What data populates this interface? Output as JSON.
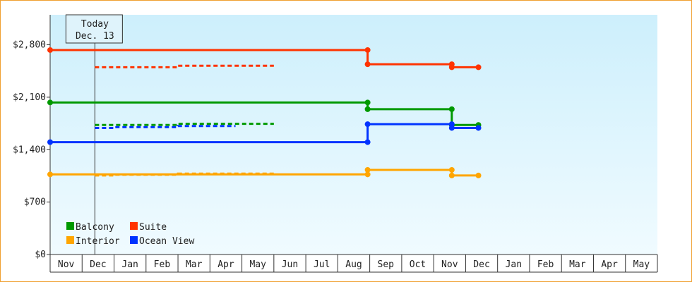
{
  "chart_data": {
    "type": "line",
    "title": "",
    "xlabel": "",
    "ylabel": "",
    "ylim": [
      0,
      3200
    ],
    "yticks": [
      0,
      700,
      1400,
      2100,
      2800
    ],
    "ytick_labels": [
      "$0",
      "$700",
      "$1,400",
      "$2,100",
      "$2,800"
    ],
    "xtick_labels": [
      "Nov",
      "Dec",
      "Jan",
      "Feb",
      "Mar",
      "Apr",
      "May",
      "Jun",
      "Jul",
      "Aug",
      "Sep",
      "Oct",
      "Nov",
      "Dec",
      "Jan",
      "Feb",
      "Mar",
      "Apr",
      "May"
    ],
    "today": {
      "label": "Today",
      "date": "Dec. 13",
      "x": "Dec 13"
    },
    "legend_position": "bottom-left",
    "grid": false,
    "series": [
      {
        "name": "Balcony",
        "color": "#009900",
        "actual": [
          [
            "Nov 1",
            2030
          ],
          [
            "Aug 29",
            2030
          ],
          [
            "Aug 29",
            1940
          ],
          [
            "Nov 18",
            1940
          ],
          [
            "Nov 18",
            1730
          ],
          [
            "Dec 13",
            1730
          ]
        ],
        "forecast": [
          [
            "Dec 13",
            1730
          ],
          [
            "Mar 1",
            1730
          ],
          [
            "Mar 1",
            1745
          ],
          [
            "May 31",
            1745
          ]
        ]
      },
      {
        "name": "Suite",
        "color": "#ff3300",
        "actual": [
          [
            "Nov 1",
            2730
          ],
          [
            "Aug 29",
            2730
          ],
          [
            "Aug 29",
            2540
          ],
          [
            "Nov 18",
            2540
          ],
          [
            "Nov 18",
            2500
          ],
          [
            "Dec 13",
            2500
          ]
        ],
        "forecast": [
          [
            "Dec 13",
            2500
          ],
          [
            "Mar 1",
            2500
          ],
          [
            "Mar 1",
            2520
          ],
          [
            "May 31",
            2520
          ]
        ]
      },
      {
        "name": "Interior",
        "color": "#ffa500",
        "actual": [
          [
            "Nov 1",
            1070
          ],
          [
            "Aug 29",
            1070
          ],
          [
            "Aug 29",
            1130
          ],
          [
            "Nov 18",
            1130
          ],
          [
            "Nov 18",
            1055
          ],
          [
            "Dec 13",
            1055
          ]
        ],
        "forecast": [
          [
            "Dec 13",
            1055
          ],
          [
            "Jan 1",
            1055
          ],
          [
            "Jan 1",
            1065
          ],
          [
            "Mar 1",
            1065
          ],
          [
            "Mar 1",
            1080
          ],
          [
            "May 31",
            1080
          ]
        ]
      },
      {
        "name": "Ocean View",
        "color": "#0033ff",
        "actual": [
          [
            "Nov 1",
            1500
          ],
          [
            "Aug 29",
            1500
          ],
          [
            "Aug 29",
            1740
          ],
          [
            "Nov 18",
            1740
          ],
          [
            "Nov 18",
            1690
          ],
          [
            "Dec 13",
            1690
          ]
        ],
        "forecast": [
          [
            "Dec 13",
            1690
          ],
          [
            "Jan 1",
            1690
          ],
          [
            "Jan 1",
            1700
          ],
          [
            "Mar 1",
            1700
          ],
          [
            "Mar 1",
            1715
          ],
          [
            "Apr 25",
            1715
          ]
        ]
      }
    ]
  }
}
